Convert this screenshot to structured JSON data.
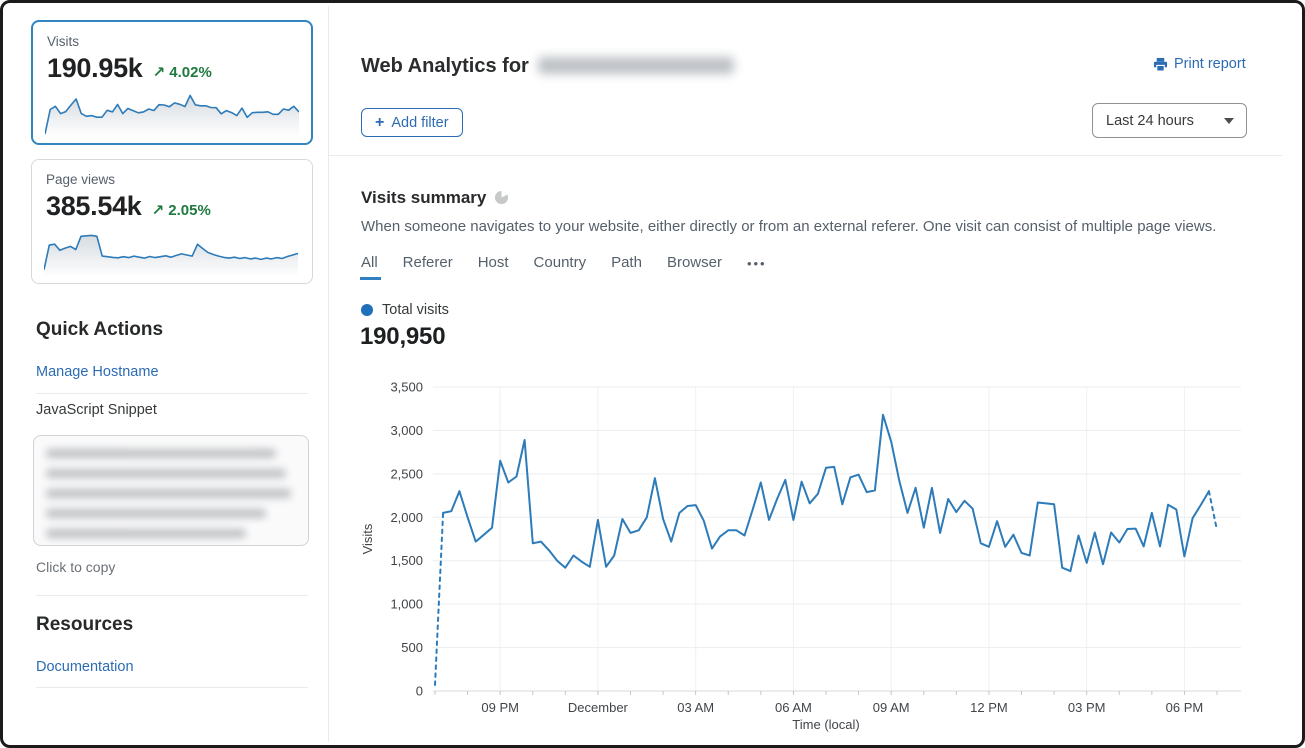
{
  "sidebar": {
    "visits_card": {
      "label": "Visits",
      "value": "190.95k",
      "delta_arrow": "↗",
      "delta": "4.02%"
    },
    "pageviews_card": {
      "label": "Page views",
      "value": "385.54k",
      "delta_arrow": "↗",
      "delta": "2.05%"
    },
    "quick_actions_title": "Quick Actions",
    "manage_hostname_label": "Manage Hostname",
    "javascript_snippet_label": "JavaScript Snippet",
    "click_to_copy_label": "Click to copy",
    "resources_title": "Resources",
    "documentation_label": "Documentation"
  },
  "header": {
    "title_prefix": "Web Analytics for",
    "print_report_label": "Print report"
  },
  "toolbar": {
    "add_filter_label": "Add filter",
    "time_range_value": "Last 24 hours"
  },
  "summary": {
    "title": "Visits summary",
    "description": "When someone navigates to your website, either directly or from an external referer. One visit can consist of multiple page views.",
    "tabs": [
      "All",
      "Referer",
      "Host",
      "Country",
      "Path",
      "Browser"
    ],
    "active_tab": "All",
    "more_tabs_label": "•••",
    "legend_label": "Total visits",
    "total_value": "190,950"
  },
  "colors": {
    "link_blue": "#2c6cb3",
    "chart_blue": "#2d7bb9",
    "positive_green": "#1f7a3f",
    "selected_card_border": "#3186c0",
    "grid_gray": "#ebedf0"
  },
  "chart_data": [
    {
      "id": "visits-timeseries",
      "type": "line",
      "title": "Total visits",
      "xlabel": "Time (local)",
      "ylabel": "Visits",
      "ylim": [
        0,
        3500
      ],
      "y_ticks": [
        0,
        500,
        1000,
        1500,
        2000,
        2500,
        3000,
        3500
      ],
      "x_tick_labels": [
        "09 PM",
        "December",
        "03 AM",
        "06 AM",
        "09 AM",
        "12 PM",
        "03 PM",
        "06 PM"
      ],
      "x_tick_indices": [
        8,
        20,
        32,
        44,
        56,
        68,
        80,
        92
      ],
      "interval_minutes": 15,
      "grid": true,
      "legend_position": "top-left",
      "dashed_segments": {
        "start_through_index": 1,
        "end_from_index": 95
      },
      "values": [
        70,
        2050,
        2070,
        2300,
        2000,
        1720,
        1800,
        1880,
        2650,
        2400,
        2470,
        2890,
        1700,
        1720,
        1620,
        1500,
        1420,
        1560,
        1490,
        1430,
        1970,
        1430,
        1560,
        1980,
        1820,
        1850,
        2000,
        2450,
        1980,
        1720,
        2050,
        2130,
        2140,
        1960,
        1640,
        1780,
        1850,
        1850,
        1790,
        2090,
        2400,
        1970,
        2210,
        2430,
        1970,
        2410,
        2160,
        2270,
        2570,
        2580,
        2150,
        2460,
        2490,
        2290,
        2310,
        3180,
        2870,
        2420,
        2050,
        2340,
        1880,
        2340,
        1820,
        2210,
        2060,
        2190,
        2100,
        1700,
        1660,
        1955,
        1660,
        1800,
        1590,
        1560,
        2170,
        2160,
        2150,
        1420,
        1380,
        1790,
        1475,
        1825,
        1460,
        1825,
        1710,
        1865,
        1870,
        1665,
        2050,
        1665,
        2145,
        2090,
        1550,
        1990,
        2140,
        2300,
        1850
      ]
    },
    {
      "id": "visits-sparkline",
      "type": "line",
      "values": [
        70,
        2050,
        2300,
        1720,
        1880,
        2400,
        2890,
        1720,
        1500,
        1560,
        1430,
        1430,
        1980,
        1850,
        2450,
        1720,
        2130,
        1960,
        1780,
        1850,
        2090,
        1970,
        2430,
        2410,
        2270,
        2580,
        2460,
        2290,
        3180,
        2420,
        2340,
        2340,
        2210,
        2190,
        1700,
        1955,
        1800,
        1560,
        2160,
        1420,
        1790,
        1825,
        1825,
        1865,
        1665,
        1665,
        2090,
        1990,
        2300,
        1850
      ]
    },
    {
      "id": "pageviews-sparkline",
      "type": "line",
      "values": [
        120,
        680,
        700,
        560,
        610,
        650,
        580,
        880,
        890,
        900,
        880,
        430,
        415,
        400,
        390,
        415,
        395,
        430,
        405,
        385,
        420,
        395,
        415,
        435,
        405,
        445,
        480,
        455,
        430,
        700,
        600,
        510,
        465,
        430,
        400,
        385,
        405,
        375,
        395,
        365,
        385,
        355,
        385,
        365,
        395,
        375,
        420,
        455,
        490
      ]
    }
  ]
}
